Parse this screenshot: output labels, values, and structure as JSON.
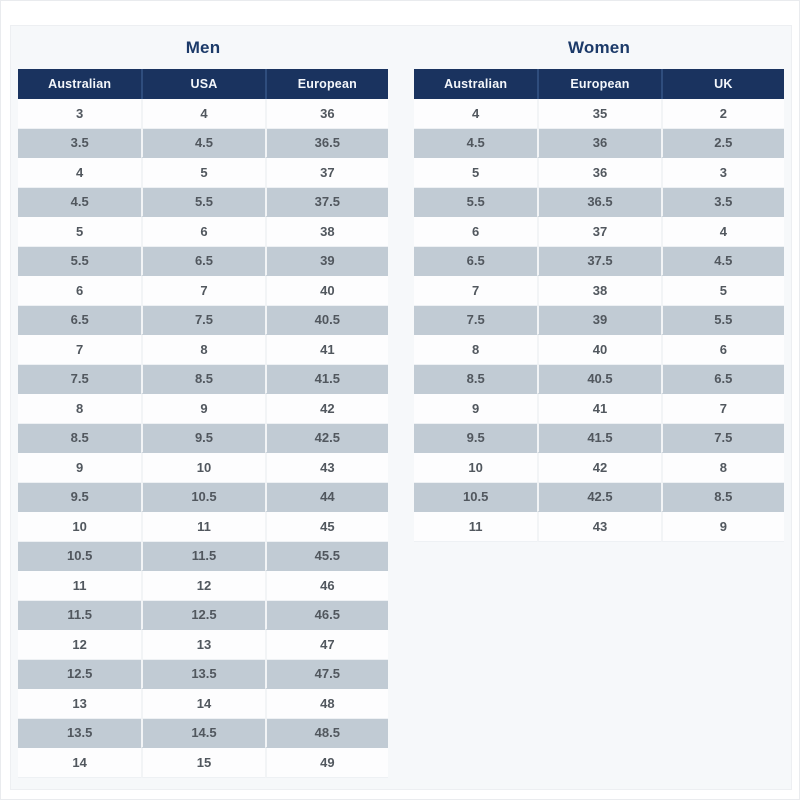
{
  "colors": {
    "header_bg": "#1a335f",
    "stripe_row": "#c1cbd4",
    "card_background": "#f6f8fa",
    "title_text": "#1c3a69",
    "cell_text": "#51575e"
  },
  "tables": [
    {
      "title": "Men",
      "columns": [
        "Australian",
        "USA",
        "European"
      ],
      "rows": [
        [
          "3",
          "4",
          "36"
        ],
        [
          "3.5",
          "4.5",
          "36.5"
        ],
        [
          "4",
          "5",
          "37"
        ],
        [
          "4.5",
          "5.5",
          "37.5"
        ],
        [
          "5",
          "6",
          "38"
        ],
        [
          "5.5",
          "6.5",
          "39"
        ],
        [
          "6",
          "7",
          "40"
        ],
        [
          "6.5",
          "7.5",
          "40.5"
        ],
        [
          "7",
          "8",
          "41"
        ],
        [
          "7.5",
          "8.5",
          "41.5"
        ],
        [
          "8",
          "9",
          "42"
        ],
        [
          "8.5",
          "9.5",
          "42.5"
        ],
        [
          "9",
          "10",
          "43"
        ],
        [
          "9.5",
          "10.5",
          "44"
        ],
        [
          "10",
          "11",
          "45"
        ],
        [
          "10.5",
          "11.5",
          "45.5"
        ],
        [
          "11",
          "12",
          "46"
        ],
        [
          "11.5",
          "12.5",
          "46.5"
        ],
        [
          "12",
          "13",
          "47"
        ],
        [
          "12.5",
          "13.5",
          "47.5"
        ],
        [
          "13",
          "14",
          "48"
        ],
        [
          "13.5",
          "14.5",
          "48.5"
        ],
        [
          "14",
          "15",
          "49"
        ]
      ]
    },
    {
      "title": "Women",
      "columns": [
        "Australian",
        "European",
        "UK"
      ],
      "rows": [
        [
          "4",
          "35",
          "2"
        ],
        [
          "4.5",
          "36",
          "2.5"
        ],
        [
          "5",
          "36",
          "3"
        ],
        [
          "5.5",
          "36.5",
          "3.5"
        ],
        [
          "6",
          "37",
          "4"
        ],
        [
          "6.5",
          "37.5",
          "4.5"
        ],
        [
          "7",
          "38",
          "5"
        ],
        [
          "7.5",
          "39",
          "5.5"
        ],
        [
          "8",
          "40",
          "6"
        ],
        [
          "8.5",
          "40.5",
          "6.5"
        ],
        [
          "9",
          "41",
          "7"
        ],
        [
          "9.5",
          "41.5",
          "7.5"
        ],
        [
          "10",
          "42",
          "8"
        ],
        [
          "10.5",
          "42.5",
          "8.5"
        ],
        [
          "11",
          "43",
          "9"
        ]
      ]
    }
  ]
}
